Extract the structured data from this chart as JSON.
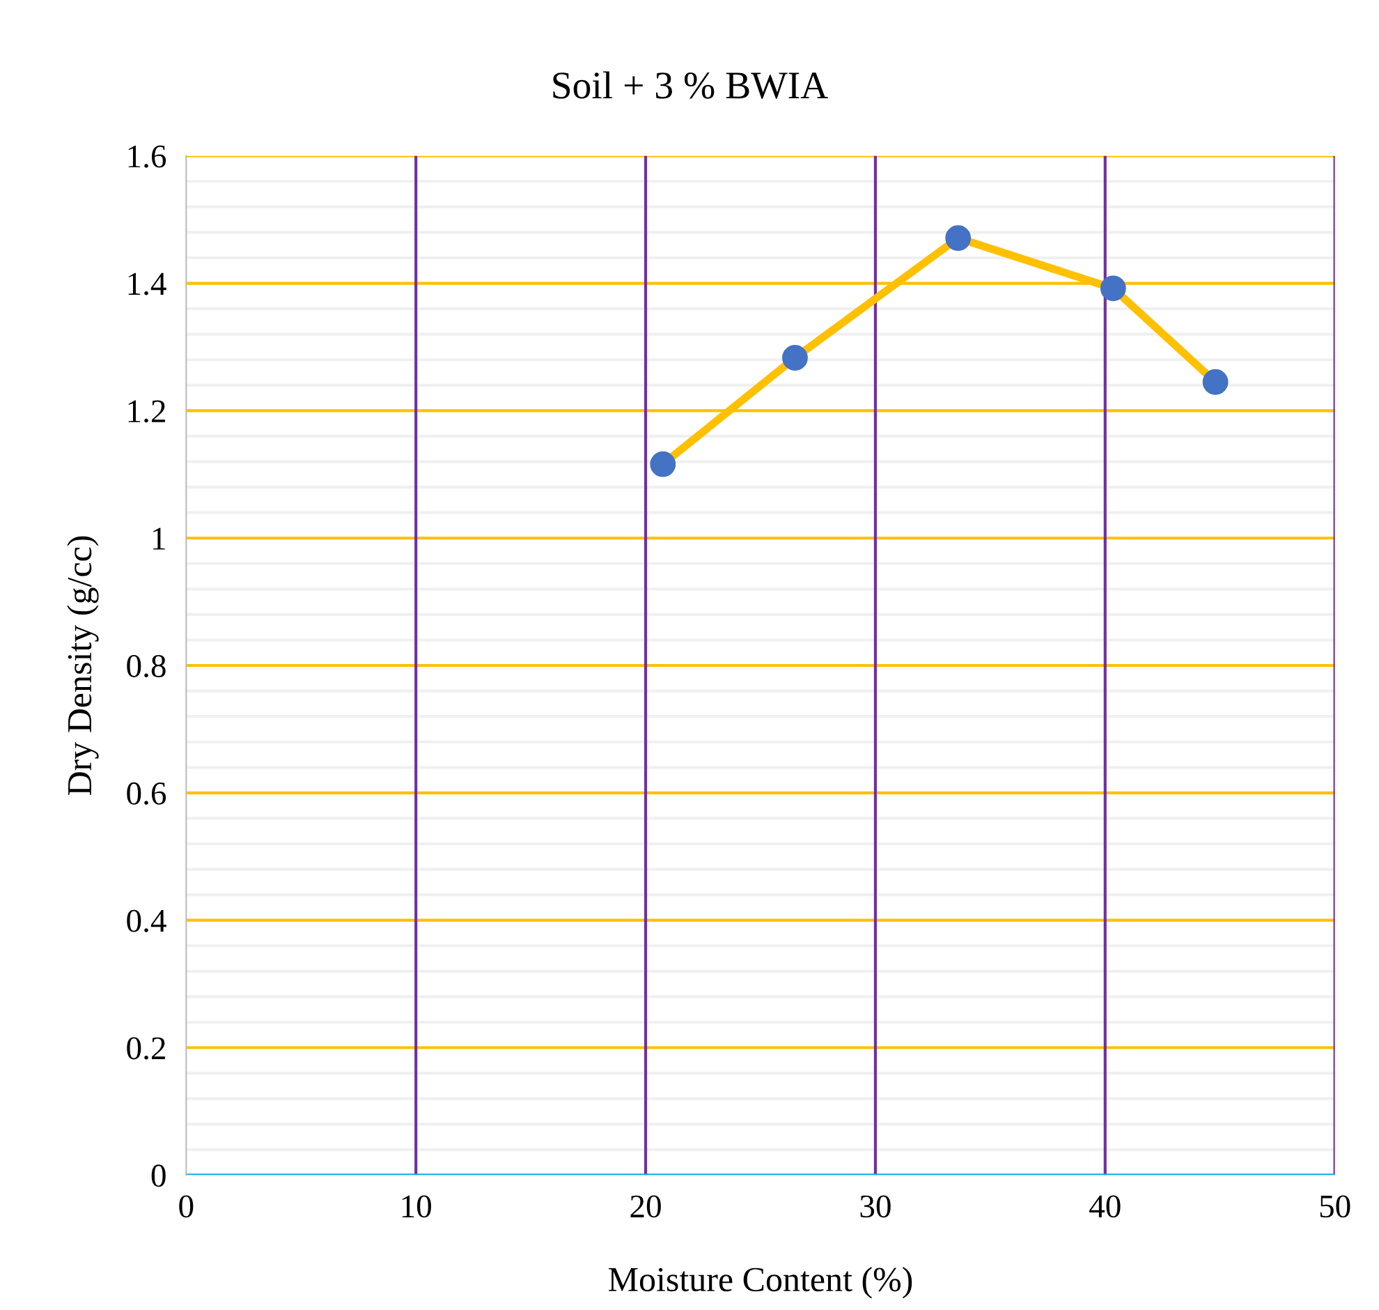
{
  "chart_data": {
    "type": "line",
    "title": "Soil + 3 % BWIA",
    "xlabel": "Moisture Content (%)",
    "ylabel": "Dry Density (g/cc)",
    "x": [
      20.75,
      26.5,
      33.6,
      40.35,
      44.8
    ],
    "series": [
      {
        "color": "#ffc000",
        "colors": [
          "#4472c4",
          "#4472c4",
          "#4472c4",
          "#4472c4",
          "#4472c4"
        ],
        "values": [
          1.116,
          1.283,
          1.471,
          1.392,
          1.245
        ]
      }
    ],
    "marker": "circle",
    "line_style": "solid",
    "grid": true,
    "xlim": [
      0,
      50
    ],
    "ylim": [
      0,
      1.6
    ],
    "xticks": [
      0,
      10,
      20,
      30,
      40,
      50
    ],
    "yticks": [
      0,
      {
        "value": 0.04,
        "label": null
      },
      {
        "value": 0.08,
        "label": null
      },
      {
        "value": 0.12,
        "label": null
      },
      {
        "value": 0.16,
        "label": null
      },
      0.2,
      {
        "value": 0.24,
        "label": null
      },
      {
        "value": 0.28,
        "label": null
      },
      {
        "value": 0.32,
        "label": null
      },
      {
        "value": 0.36,
        "label": null
      },
      0.4,
      {
        "value": 0.44,
        "label": null
      },
      {
        "value": 0.48,
        "label": null
      },
      {
        "value": 0.52,
        "label": null
      },
      {
        "value": 0.56,
        "label": null
      },
      0.6,
      {
        "value": 0.64,
        "label": null
      },
      {
        "value": 0.68,
        "label": null
      },
      {
        "value": 0.72,
        "label": null
      },
      {
        "value": 0.76,
        "label": null
      },
      0.8,
      {
        "value": 0.84,
        "label": null
      },
      {
        "value": 0.88,
        "label": null
      },
      {
        "value": 0.92,
        "label": null
      },
      {
        "value": 0.96,
        "label": null
      },
      1,
      {
        "value": 1.04,
        "label": null
      },
      {
        "value": 1.08,
        "label": null
      },
      {
        "value": 1.12,
        "label": null
      },
      {
        "value": 1.16,
        "label": null
      },
      1.2,
      {
        "value": 1.24,
        "label": null
      },
      {
        "value": 1.28,
        "label": null
      },
      {
        "value": 1.32,
        "label": null
      },
      {
        "value": 1.36,
        "label": null
      },
      1.4,
      {
        "value": 1.44,
        "label": null
      },
      {
        "value": 1.48,
        "label": null
      },
      {
        "value": 1.52,
        "label": null
      },
      {
        "value": 1.56,
        "label": null
      },
      1.6
    ]
  }
}
